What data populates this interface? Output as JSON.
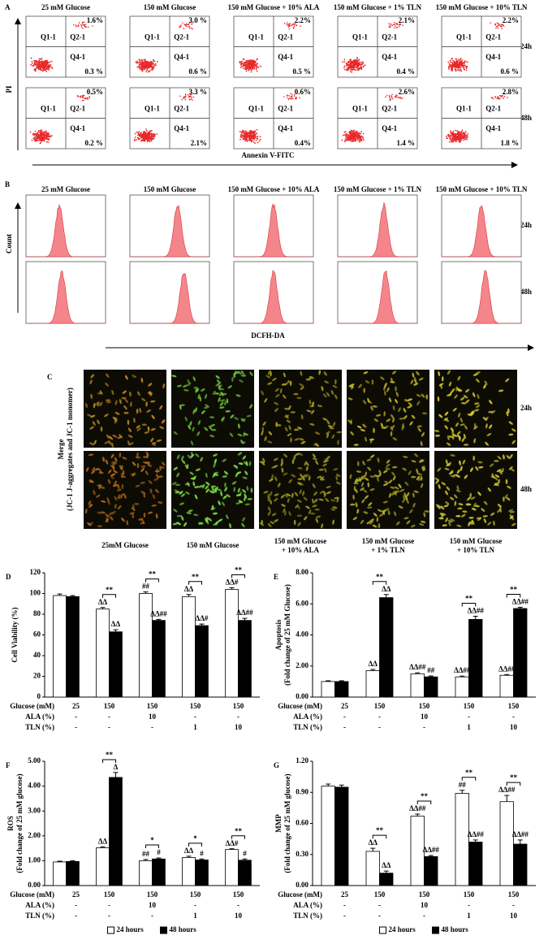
{
  "panel_a": {
    "letter": "A",
    "y_label": "PI",
    "x_label": "Annexin V-FITC",
    "columns": [
      "25 mM Glucose",
      "150 mM Glucose",
      "150 mM Glucose + 10% ALA",
      "150 mM Glucose + 1% TLN",
      "150 mM Glucose + 10% TLN"
    ],
    "quadrants": [
      "Q1-1",
      "Q2-1",
      "Q4-1"
    ],
    "rows": [
      {
        "time": "24h",
        "upper": [
          "1.6%",
          "3.0 %",
          "2.2%",
          "2.1%",
          "2.2%"
        ],
        "lower": [
          "0.3 %",
          "0.6 %",
          "0.5 %",
          "0.4 %",
          "0.6 %"
        ]
      },
      {
        "time": "48h",
        "upper": [
          "0.5%",
          "3.3 %",
          "0.6%",
          "2.6%",
          "2.8%"
        ],
        "lower": [
          "0.2 %",
          "2.1%",
          "0.4%",
          "1.4 %",
          "1.8 %"
        ]
      }
    ]
  },
  "panel_b": {
    "letter": "B",
    "y_label": "Count",
    "x_label": "DCFH-DA",
    "columns": [
      "25 mM Glucose",
      "150 mM Glucose",
      "150 mM Glucose + 10% ALA",
      "150 mM Glucose + 1% TLN",
      "150 mM Glucose + 10% TLN"
    ],
    "times": [
      "24h",
      "48h"
    ]
  },
  "panel_c": {
    "letter": "C",
    "y_label": [
      "Merge",
      "(JC-1 J-aggregates and JC-1 monomer)"
    ],
    "columns": [
      [
        "25mM Glucose"
      ],
      [
        "150 mM Glucose"
      ],
      [
        "150 mM Glucose",
        "+ 10% ALA"
      ],
      [
        "150 mM Glucose",
        "+ 1% TLN"
      ],
      [
        "150 mM Glucose",
        "+ 10% TLN"
      ]
    ],
    "times": [
      "24h",
      "48h"
    ]
  },
  "chart_data": [
    {
      "type": "bar",
      "label": "D",
      "ylabel": [
        "Cell Viability (%)"
      ],
      "ylim": [
        0,
        120
      ],
      "yticks": [
        0,
        20,
        40,
        60,
        80,
        100,
        120
      ],
      "series": [
        {
          "color": "#ffffff",
          "values": [
            98,
            85,
            100,
            97,
            104
          ],
          "errors": [
            1.5,
            1.5,
            1.5,
            2,
            1.5
          ],
          "tags": [
            null,
            "ΔΔ",
            "##",
            "ΔΔ",
            "ΔΔ#"
          ]
        },
        {
          "color": "#000000",
          "values": [
            97,
            63,
            74,
            69,
            74
          ],
          "errors": [
            1,
            2,
            1,
            1.5,
            2
          ],
          "tags": [
            null,
            "ΔΔ",
            "ΔΔ##",
            "ΔΔ#",
            "ΔΔ##"
          ]
        }
      ],
      "brackets": [
        null,
        "**",
        "**",
        "**",
        "**"
      ],
      "table": [
        {
          "name": "Glucose (mM)",
          "values": [
            "25",
            "150",
            "150",
            "150",
            "150"
          ]
        },
        {
          "name": "ALA (%)",
          "values": [
            "-",
            "-",
            "10",
            "-",
            "-"
          ]
        },
        {
          "name": "TLN (%)",
          "values": [
            "-",
            "-",
            "-",
            "1",
            "10"
          ]
        }
      ]
    },
    {
      "type": "bar",
      "label": "E",
      "ylabel": [
        "Apoptosis",
        "(Fold change of 25 mM Glucose)"
      ],
      "ylim": [
        0,
        8
      ],
      "yticks": [
        {
          "value": 0,
          "label": "0.00"
        },
        {
          "value": 2,
          "label": "2.00"
        },
        {
          "value": 4,
          "label": "4.00"
        },
        {
          "value": 6,
          "label": "6.00"
        },
        {
          "value": 8,
          "label": "8.00"
        }
      ],
      "series": [
        {
          "color": "#ffffff",
          "values": [
            1.0,
            1.7,
            1.5,
            1.3,
            1.4
          ],
          "errors": [
            0.05,
            0.08,
            0.06,
            0.05,
            0.05
          ],
          "tags": [
            null,
            "ΔΔ",
            "ΔΔ##",
            "ΔΔ##",
            "ΔΔ##"
          ]
        },
        {
          "color": "#000000",
          "values": [
            1.0,
            6.4,
            1.3,
            5.0,
            5.7
          ],
          "errors": [
            0.05,
            0.2,
            0.06,
            0.2,
            0.08
          ],
          "tags": [
            null,
            "ΔΔ",
            "##",
            "ΔΔ##",
            "ΔΔ##"
          ]
        }
      ],
      "brackets": [
        null,
        "**",
        null,
        "**",
        "**"
      ],
      "table": [
        {
          "name": "Glucose (mM)",
          "values": [
            "25",
            "150",
            "150",
            "150",
            "150"
          ]
        },
        {
          "name": "ALA (%)",
          "values": [
            "-",
            "-",
            "10",
            "-",
            "-"
          ]
        },
        {
          "name": "TLN (%)",
          "values": [
            "-",
            "-",
            "-",
            "1",
            "10"
          ]
        }
      ]
    },
    {
      "type": "bar",
      "label": "F",
      "ylabel": [
        "ROS",
        "(Fold change of 25 mM glucose)"
      ],
      "ylim": [
        0,
        5
      ],
      "yticks": [
        {
          "value": 0,
          "label": "0.00"
        },
        {
          "value": 1,
          "label": "1.00"
        },
        {
          "value": 2,
          "label": "2.00"
        },
        {
          "value": 3,
          "label": "3.00"
        },
        {
          "value": 4,
          "label": "4.00"
        },
        {
          "value": 5,
          "label": "5.00"
        }
      ],
      "series": [
        {
          "name": "24 hours",
          "color": "#ffffff",
          "values": [
            0.95,
            1.52,
            1.0,
            1.13,
            1.45
          ],
          "errors": [
            0.03,
            0.04,
            0.05,
            0.05,
            0.03
          ],
          "tags": [
            null,
            "ΔΔ",
            "##",
            "ΔΔ",
            "ΔΔ#"
          ]
        },
        {
          "name": "48 hours",
          "color": "#000000",
          "values": [
            0.97,
            4.35,
            1.07,
            1.03,
            1.02
          ],
          "errors": [
            0.03,
            0.2,
            0.04,
            0.04,
            0.05
          ],
          "tags": [
            null,
            "Δ",
            "#",
            "#",
            "#"
          ]
        }
      ],
      "brackets": [
        null,
        "**",
        "*",
        "*",
        "**"
      ],
      "legend": true,
      "table": [
        {
          "name": "Glucose (mM)",
          "values": [
            "25",
            "150",
            "150",
            "150",
            "150"
          ]
        },
        {
          "name": "ALA (%)",
          "values": [
            "-",
            "-",
            "10",
            "-",
            "-"
          ]
        },
        {
          "name": "TLN (%)",
          "values": [
            "-",
            "-",
            "-",
            "1",
            "10"
          ]
        }
      ]
    },
    {
      "type": "bar",
      "label": "G",
      "ylabel": [
        "MMP",
        "(Fold change of 25 mM glucose)"
      ],
      "ylim": [
        0,
        1.2
      ],
      "yticks": [
        {
          "value": 0,
          "label": "0.00"
        },
        {
          "value": 0.3,
          "label": "0.30"
        },
        {
          "value": 0.6,
          "label": "0.60"
        },
        {
          "value": 0.9,
          "label": "0.90"
        },
        {
          "value": 1.2,
          "label": "1.20"
        }
      ],
      "series": [
        {
          "name": "24 hours",
          "color": "#ffffff",
          "values": [
            0.96,
            0.33,
            0.67,
            0.89,
            0.81
          ],
          "errors": [
            0.02,
            0.03,
            0.02,
            0.03,
            0.06
          ],
          "tags": [
            null,
            "ΔΔ",
            "ΔΔ##",
            "##",
            "ΔΔ##"
          ]
        },
        {
          "name": "48 hours",
          "color": "#000000",
          "values": [
            0.95,
            0.12,
            0.28,
            0.42,
            0.4
          ],
          "errors": [
            0.02,
            0.02,
            0.01,
            0.02,
            0.04
          ],
          "tags": [
            null,
            "ΔΔ",
            "ΔΔ##",
            "ΔΔ##",
            "ΔΔ##"
          ]
        }
      ],
      "brackets": [
        null,
        "**",
        "**",
        "**",
        "**"
      ],
      "legend": true,
      "table": [
        {
          "name": "Glucose (mM)",
          "values": [
            "25",
            "150",
            "150",
            "150",
            "150"
          ]
        },
        {
          "name": "ALA (%)",
          "values": [
            "-",
            "-",
            "10",
            "-",
            "-"
          ]
        },
        {
          "name": "TLN (%)",
          "values": [
            "-",
            "-",
            "-",
            "1",
            "10"
          ]
        }
      ]
    }
  ]
}
